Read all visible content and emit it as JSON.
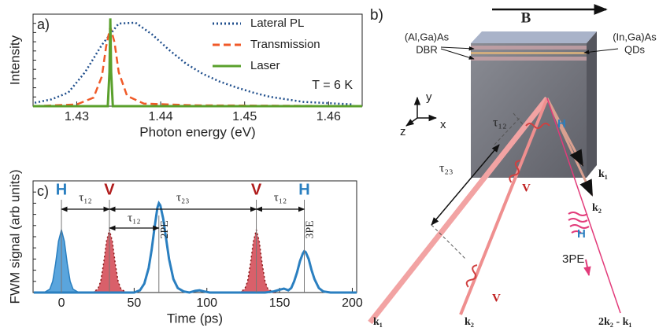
{
  "chart_data": [
    {
      "type": "line",
      "panel_label": "a)",
      "ylabel": "Intensity",
      "xlabel": "Photon energy (eV)",
      "xlim": [
        1.4248,
        1.464
      ],
      "ylim": [
        0,
        1.08
      ],
      "xticks": [
        1.43,
        1.44,
        1.45,
        1.46
      ],
      "legend": "upper right",
      "annotation": "T = 6 K",
      "series": [
        {
          "name": "Lateral PL",
          "color": "#1f4e8c",
          "dash": "dotted",
          "x": [
            1.425,
            1.427,
            1.429,
            1.431,
            1.433,
            1.435,
            1.437,
            1.439,
            1.441,
            1.443,
            1.445,
            1.447,
            1.449,
            1.451,
            1.453,
            1.455,
            1.457,
            1.459,
            1.461,
            1.463
          ],
          "values": [
            0.04,
            0.08,
            0.16,
            0.4,
            0.72,
            0.97,
            0.98,
            0.84,
            0.66,
            0.5,
            0.38,
            0.29,
            0.22,
            0.16,
            0.11,
            0.08,
            0.05,
            0.04,
            0.03,
            0.02
          ]
        },
        {
          "name": "Transmission",
          "color": "#f05a28",
          "dash": "dashed",
          "x": [
            1.4248,
            1.43,
            1.432,
            1.433,
            1.4335,
            1.434,
            1.4345,
            1.435,
            1.436,
            1.438,
            1.444,
            1.464
          ],
          "values": [
            0,
            0.02,
            0.1,
            0.35,
            0.7,
            0.93,
            0.75,
            0.4,
            0.12,
            0.03,
            0.01,
            0
          ]
        },
        {
          "name": "Laser",
          "color": "#5aa02c",
          "dash": "solid",
          "x": [
            1.4248,
            1.4337,
            1.4339,
            1.434,
            1.4341,
            1.4343,
            1.464
          ],
          "values": [
            0,
            0,
            0.4,
            1.03,
            0.4,
            0,
            0
          ]
        }
      ]
    },
    {
      "type": "line",
      "panel_label": "c)",
      "ylabel": "FWM signal (arb units)",
      "xlabel": "Time (ps)",
      "xlim": [
        -19.5,
        203
      ],
      "ylim": [
        0,
        1
      ],
      "xticks": [
        0,
        50,
        100,
        150,
        200
      ],
      "series": [
        {
          "color": "#2a7fc0",
          "fill": "#5aa5dd",
          "dash": "solid",
          "x": [
            -12,
            -8,
            -6,
            -4,
            -2,
            0,
            2,
            4,
            6,
            8,
            12
          ],
          "values": [
            0,
            0.03,
            0.1,
            0.26,
            0.46,
            0.56,
            0.46,
            0.26,
            0.1,
            0.03,
            0
          ]
        },
        {
          "color": "#8b1a1a",
          "fill": "#d9606a",
          "dash": "dotted",
          "x": [
            21,
            25,
            27,
            29,
            31,
            33,
            35,
            37,
            39,
            41,
            45
          ],
          "values": [
            0,
            0.03,
            0.1,
            0.26,
            0.46,
            0.56,
            0.46,
            0.26,
            0.1,
            0.03,
            0
          ]
        },
        {
          "color": "#8b1a1a",
          "fill": "#d9606a",
          "dash": "dotted",
          "x": [
            122,
            126,
            128,
            130,
            132,
            134,
            136,
            138,
            140,
            142,
            146
          ],
          "values": [
            0,
            0.03,
            0.1,
            0.26,
            0.46,
            0.56,
            0.46,
            0.26,
            0.1,
            0.03,
            0
          ]
        },
        {
          "color": "#2a7fc0",
          "dash": "solid",
          "x": [
            -19,
            50,
            54,
            57,
            60,
            62,
            64,
            66,
            67,
            68,
            70,
            72,
            74,
            77,
            80,
            84,
            88,
            92,
            95,
            98,
            102,
            140,
            146,
            150,
            153,
            156,
            158,
            160,
            162,
            164,
            166,
            167,
            168,
            170,
            172,
            174,
            177,
            180,
            185,
            203
          ],
          "values": [
            0,
            0,
            0.02,
            0.08,
            0.22,
            0.38,
            0.58,
            0.76,
            0.8,
            0.78,
            0.66,
            0.48,
            0.3,
            0.12,
            0.04,
            0.01,
            0,
            0.015,
            0.02,
            0.01,
            0,
            0,
            0.01,
            0.025,
            0.035,
            0.02,
            0.04,
            0.1,
            0.18,
            0.28,
            0.35,
            0.37,
            0.36,
            0.3,
            0.2,
            0.12,
            0.04,
            0.01,
            0,
            0
          ]
        }
      ],
      "pulse_labels": [
        {
          "text": "H",
          "x": 0,
          "color": "#2a7fc0"
        },
        {
          "text": "V",
          "x": 33,
          "color": "#b01c1c"
        },
        {
          "text": "V",
          "x": 134,
          "color": "#b01c1c"
        },
        {
          "text": "H",
          "x": 167,
          "color": "#2a7fc0"
        }
      ],
      "echo_labels": [
        {
          "text": "2PE",
          "x": 67
        },
        {
          "text": "3PE",
          "x": 167
        }
      ],
      "delays": [
        {
          "text": "τ₁₂",
          "from": 0,
          "to": 33
        },
        {
          "text": "τ₂₃",
          "from": 33,
          "to": 134
        },
        {
          "text": "τ₁₂",
          "from": 134,
          "to": 167
        }
      ],
      "inner_delay": {
        "text": "τ₁₂",
        "from": 33,
        "to": 67
      }
    }
  ],
  "diagram": {
    "panel_label": "b)",
    "field": "B",
    "dbr": [
      "(Al,Ga)As",
      "DBR"
    ],
    "qds": [
      "(In,Ga)As",
      "QDs"
    ],
    "axes": [
      "y",
      "z",
      "x"
    ],
    "tau12": "τ₁₂",
    "tau23": "τ₂₃",
    "pulses": [
      "H",
      "V",
      "V",
      "H"
    ],
    "beams": [
      "k₁",
      "k₂",
      "k₁",
      "k₂",
      "2k₂ - k₁"
    ],
    "echo": "3PE"
  }
}
